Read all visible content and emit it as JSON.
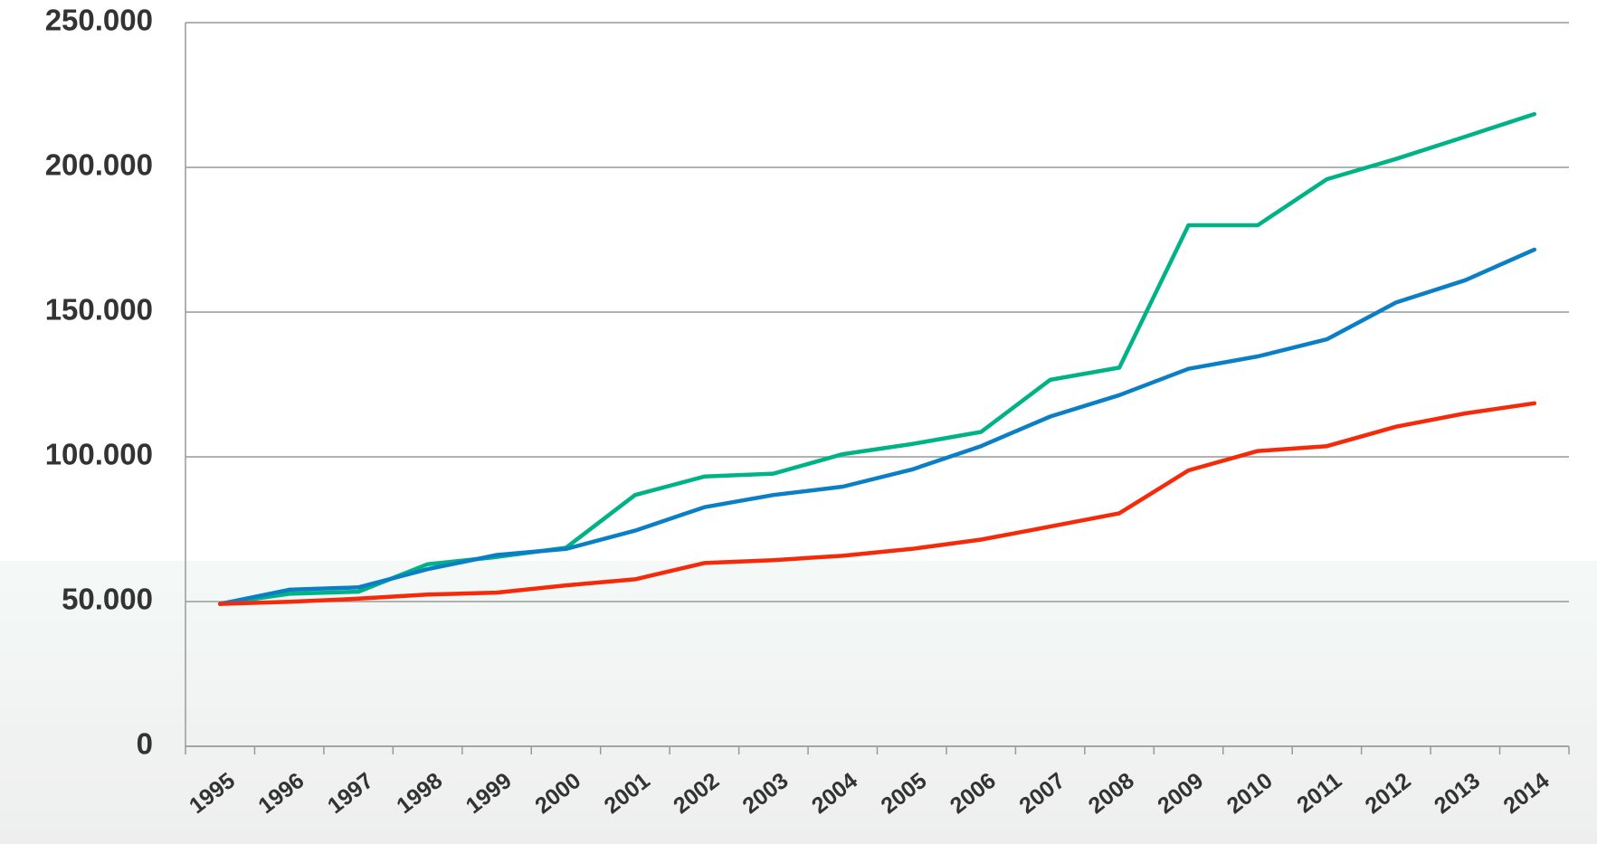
{
  "chart_data": {
    "type": "line",
    "categories": [
      "1995",
      "1996",
      "1997",
      "1998",
      "1999",
      "2000",
      "2001",
      "2002",
      "2003",
      "2004",
      "2005",
      "2006",
      "2007",
      "2008",
      "2009",
      "2010",
      "2011",
      "2012",
      "2013",
      "2014"
    ],
    "series": [
      {
        "color": "#00b386",
        "values": [
          49200,
          52700,
          53400,
          62900,
          65400,
          68600,
          86800,
          93200,
          94200,
          100900,
          104400,
          108600,
          126600,
          130800,
          180000,
          180000,
          195900,
          202900,
          210600,
          218400
        ]
      },
      {
        "color": "#0a7fc6",
        "values": [
          49200,
          54100,
          54900,
          61200,
          66100,
          68200,
          74500,
          82600,
          86800,
          89700,
          95600,
          103700,
          113900,
          121300,
          130400,
          134700,
          140600,
          153300,
          161000,
          171600
        ]
      },
      {
        "color": "#f52a0a",
        "values": [
          49200,
          49900,
          51000,
          52400,
          53100,
          55600,
          57700,
          63300,
          64300,
          65800,
          68200,
          71400,
          75900,
          80500,
          95300,
          102000,
          103700,
          110400,
          115000,
          118500
        ]
      }
    ],
    "ylim": [
      0,
      250000
    ],
    "yticks": [
      0,
      {
        "value": 50000,
        "label": "50.000"
      },
      {
        "value": 100000,
        "label": "100.000"
      },
      {
        "value": 150000,
        "label": "150.000"
      },
      {
        "value": 200000,
        "label": "200.000"
      },
      {
        "value": 250000,
        "label": "250.000"
      }
    ],
    "grid": true
  }
}
